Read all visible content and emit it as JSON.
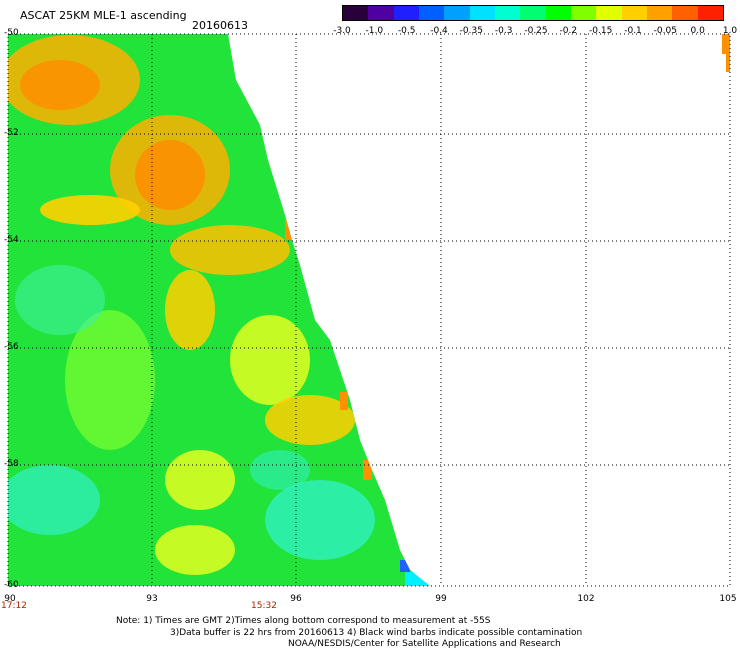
{
  "header": {
    "title": "ASCAT 25KM MLE-1 ascending",
    "date": "20160613"
  },
  "colorbar": {
    "labels": [
      "-3.0",
      "-1.0",
      "-0.5",
      "-0.4",
      "-0.35",
      "-0.3",
      "-0.25",
      "-0.2",
      "-0.15",
      "-0.1",
      "-0.05",
      "0.0",
      "1.0"
    ],
    "colors": [
      "#2a003c",
      "#5000a0",
      "#2020ff",
      "#0060ff",
      "#00a0ff",
      "#00e0ff",
      "#00ffd0",
      "#00ff70",
      "#00ff00",
      "#80ff00",
      "#e0ff00",
      "#ffd000",
      "#ffa000",
      "#ff6000",
      "#ff2000"
    ]
  },
  "map": {
    "lat_labels": [
      "-50",
      "-52",
      "-54",
      "-56",
      "-58",
      "-60"
    ],
    "lon_labels": [
      "90",
      "93",
      "96",
      "99",
      "102",
      "105"
    ],
    "time_labels": [
      "17:12",
      "15:32"
    ],
    "lat_range": [
      -60,
      -50
    ],
    "lon_range": [
      90,
      105
    ],
    "grid": "dotted"
  },
  "footer": {
    "note_line1": "Note: 1) Times are GMT 2)Times along bottom correspond to measurement at -55S",
    "note_line2": "3)Data buffer is 22 hrs from 20160613 4) Black wind barbs indicate possible contamination",
    "credit": "NOAA/NESDIS/Center for Satellite Applications and Research"
  }
}
